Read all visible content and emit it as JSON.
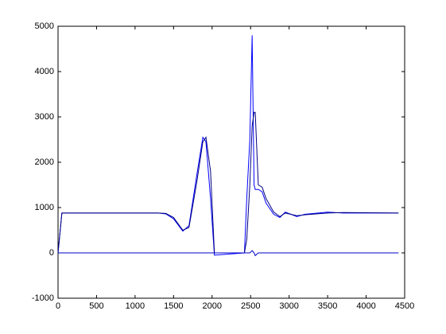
{
  "chart_data": {
    "type": "line",
    "x": [
      0,
      50,
      1300,
      1400,
      1500,
      1620,
      1700,
      1800,
      1880,
      1920,
      1980,
      2030,
      2420,
      2450,
      2490,
      2520,
      2545,
      2560,
      2600,
      2650,
      2700,
      2800,
      2880,
      2950,
      3100,
      3200,
      3500,
      3700,
      4420
    ],
    "series": [
      {
        "color": "#0000ff",
        "values": [
          0,
          880,
          880,
          860,
          750,
          480,
          600,
          1700,
          2550,
          2450,
          1200,
          -50,
          0,
          1200,
          2500,
          4800,
          1500,
          1400,
          1400,
          1350,
          1100,
          850,
          780,
          900,
          800,
          850,
          900,
          880,
          880
        ]
      },
      {
        "color": "#000080",
        "values": [
          0,
          880,
          880,
          870,
          780,
          500,
          560,
          1550,
          2450,
          2550,
          1800,
          0,
          0,
          300,
          1500,
          2800,
          3100,
          3100,
          1500,
          1450,
          1200,
          900,
          800,
          880,
          820,
          840,
          880,
          890,
          880
        ]
      },
      {
        "color": "#0000cd",
        "values": [
          0,
          0,
          0,
          0,
          0,
          0,
          0,
          0,
          0,
          0,
          0,
          0,
          0,
          0,
          0,
          50,
          0,
          -60,
          0,
          0,
          0,
          0,
          0,
          0,
          0,
          0,
          0,
          0,
          0
        ]
      }
    ],
    "xlim": [
      0,
      4500
    ],
    "xticks": [
      0,
      500,
      1000,
      1500,
      2000,
      2500,
      3000,
      3500,
      4000,
      4500
    ],
    "ylim": [
      -1000,
      5000
    ],
    "yticks": [
      -1000,
      0,
      1000,
      2000,
      3000,
      4000,
      5000
    ],
    "grid": false
  }
}
